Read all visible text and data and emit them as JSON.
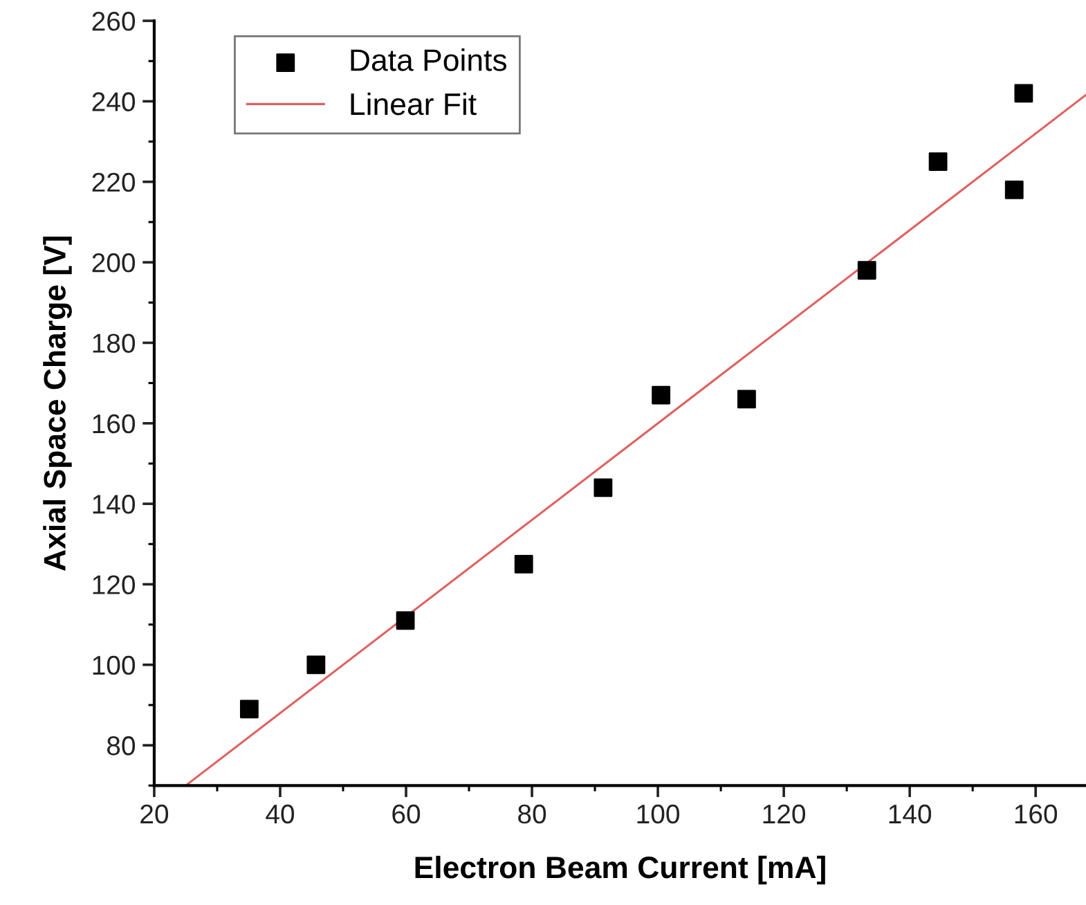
{
  "chart_data": {
    "type": "scatter",
    "xlabel": "Electron Beam Current [mA]",
    "ylabel": "Axial Space Charge [V]",
    "xlim": [
      20,
      168
    ],
    "ylim": [
      70,
      260
    ],
    "xticks": [
      20,
      40,
      60,
      80,
      100,
      120,
      140,
      160
    ],
    "yticks": [
      80,
      100,
      120,
      140,
      160,
      180,
      200,
      220,
      240,
      260
    ],
    "grid": false,
    "legend": "top left",
    "series": [
      {
        "name": "Data Points",
        "marker": "square",
        "color": "#000000",
        "x": [
          35.1,
          45.7,
          59.9,
          78.7,
          91.3,
          100.5,
          114.1,
          133.2,
          144.5,
          156.6,
          158.1
        ],
        "values": [
          89,
          100,
          111,
          125,
          144,
          167,
          166,
          198,
          225,
          218,
          242
        ]
      },
      {
        "name": "Linear Fit",
        "type": "line",
        "marker": "none",
        "line_style": "solid",
        "color": "#e06060",
        "x": [
          25,
          168
        ],
        "values": [
          70,
          241.6
        ]
      }
    ]
  }
}
